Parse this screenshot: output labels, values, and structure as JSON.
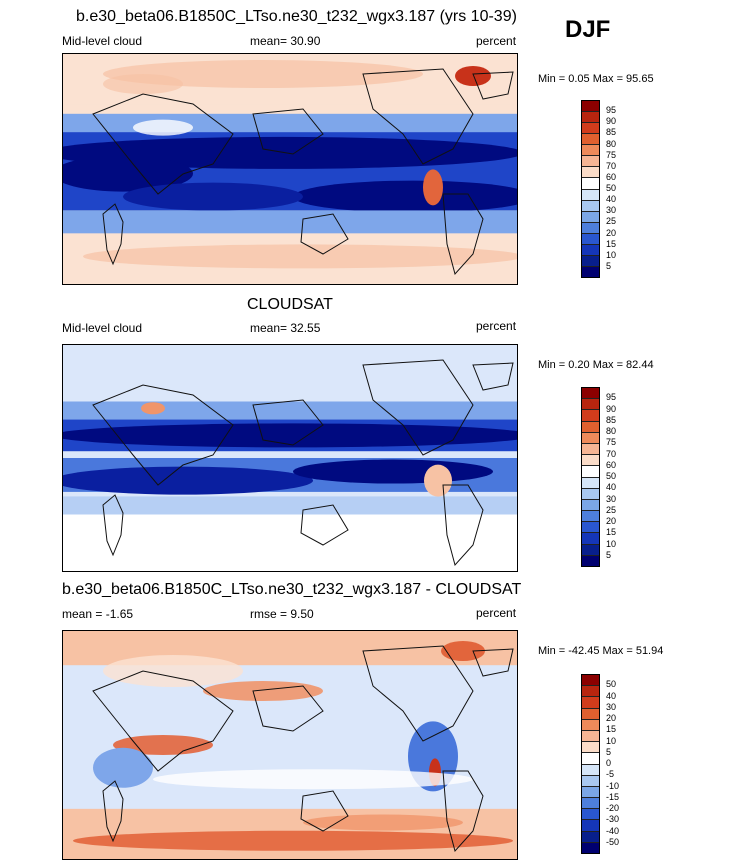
{
  "season": "DJF",
  "panels": [
    {
      "title": "b.e30_beta06.B1850C_LTso.ne30_t232_wgx3.187 (yrs 10-39)",
      "left_label": "Mid-level cloud",
      "center_label": "mean=  30.90",
      "right_label": "percent",
      "minmax": "Min =   0.05 Max =  95.65",
      "colorbar": {
        "labels": [
          "95",
          "90",
          "85",
          "80",
          "75",
          "70",
          "60",
          "50",
          "40",
          "30",
          "25",
          "20",
          "15",
          "10",
          "5"
        ],
        "colors": [
          "#8b0000",
          "#b8250f",
          "#d13c1c",
          "#e0602f",
          "#ee8a5a",
          "#f6b594",
          "#fbdcc8",
          "#ffffff",
          "#d6e6f8",
          "#a9c8f0",
          "#7ba6e6",
          "#4e7fdc",
          "#2a57cf",
          "#1536b8",
          "#081f8c",
          "#000070"
        ]
      },
      "field": "model"
    },
    {
      "title": "CLOUDSAT",
      "left_label": "Mid-level cloud",
      "center_label": "mean=  32.55",
      "right_label": "percent",
      "minmax": "Min =   0.20 Max =  82.44",
      "colorbar": {
        "labels": [
          "95",
          "90",
          "85",
          "80",
          "75",
          "70",
          "60",
          "50",
          "40",
          "30",
          "25",
          "20",
          "15",
          "10",
          "5"
        ],
        "colors": [
          "#8b0000",
          "#b8250f",
          "#d13c1c",
          "#e0602f",
          "#ee8a5a",
          "#f6b594",
          "#fbdcc8",
          "#ffffff",
          "#d6e6f8",
          "#a9c8f0",
          "#7ba6e6",
          "#4e7fdc",
          "#2a57cf",
          "#1536b8",
          "#081f8c",
          "#000070"
        ]
      },
      "field": "obs"
    },
    {
      "title": "b.e30_beta06.B1850C_LTso.ne30_t232_wgx3.187 - CLOUDSAT",
      "left_label": "mean =  -1.65",
      "center_label": "rmse =    9.50",
      "right_label": "percent",
      "minmax": "Min = -42.45 Max =  51.94",
      "colorbar": {
        "labels": [
          "50",
          "40",
          "30",
          "20",
          "15",
          "10",
          "5",
          "0",
          "-5",
          "-10",
          "-15",
          "-20",
          "-30",
          "-40",
          "-50"
        ],
        "colors": [
          "#8b0000",
          "#b8250f",
          "#d13c1c",
          "#e0602f",
          "#ee8a5a",
          "#f6b594",
          "#fbdcc8",
          "#ffffff",
          "#d6e6f8",
          "#a9c8f0",
          "#7ba6e6",
          "#4e7fdc",
          "#2a57cf",
          "#1536b8",
          "#081f8c",
          "#000070"
        ]
      },
      "field": "diff"
    }
  ]
}
